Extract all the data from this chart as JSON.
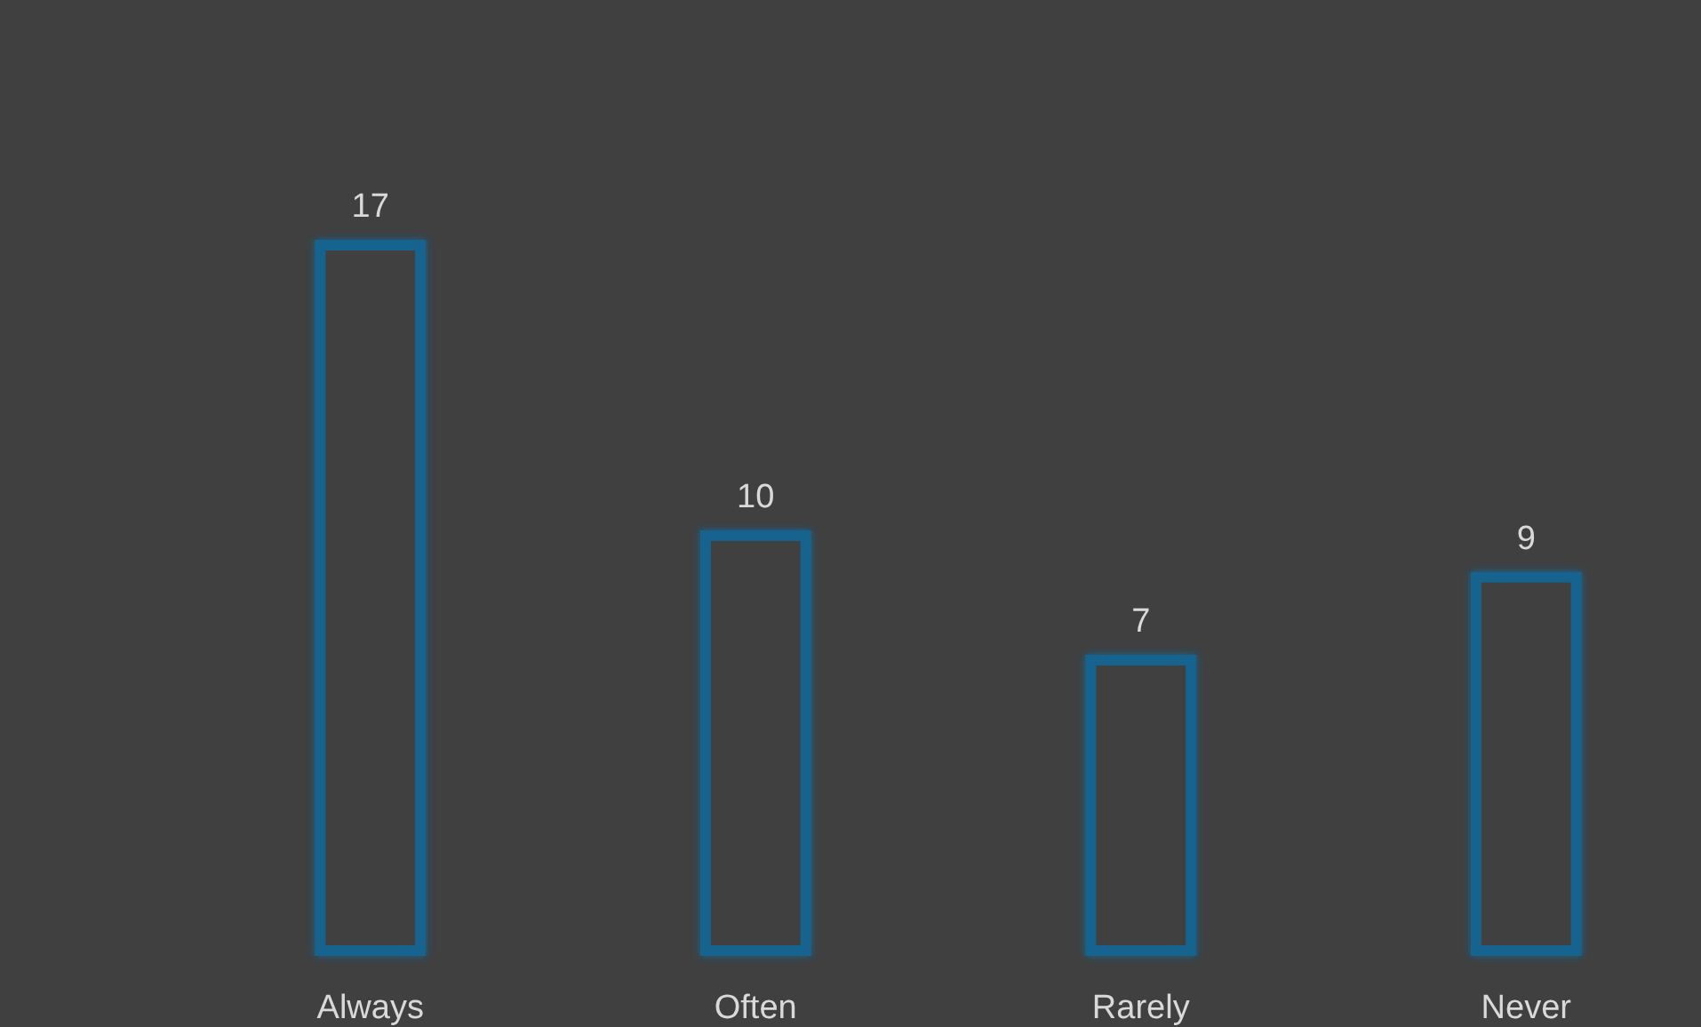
{
  "chart_data": {
    "type": "bar",
    "categories": [
      "Always",
      "Often",
      "Rarely",
      "Never"
    ],
    "values": [
      17,
      10,
      7,
      9
    ],
    "color": "#17648f",
    "data_labels": true
  }
}
